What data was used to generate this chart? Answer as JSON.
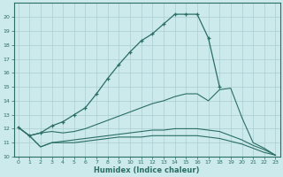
{
  "xlabel": "Humidex (Indice chaleur)",
  "xlim": [
    0,
    23
  ],
  "ylim": [
    10,
    21
  ],
  "yticks": [
    10,
    11,
    12,
    13,
    14,
    15,
    16,
    17,
    18,
    19,
    20
  ],
  "xticks": [
    0,
    1,
    2,
    3,
    4,
    5,
    6,
    7,
    8,
    9,
    10,
    11,
    12,
    13,
    14,
    15,
    16,
    17,
    18,
    19,
    20,
    21,
    22,
    23
  ],
  "bg_color": "#cce9ec",
  "grid_color": "#aacdd2",
  "line_color": "#2a6e65",
  "curve_upper_x": [
    0,
    1,
    2,
    3,
    4,
    5,
    6,
    7,
    8,
    9,
    10,
    11,
    12,
    13,
    14,
    15,
    16,
    17,
    18
  ],
  "curve_upper_y": [
    12.1,
    11.5,
    11.7,
    12.2,
    12.5,
    13.0,
    13.5,
    14.5,
    15.6,
    16.6,
    17.5,
    18.3,
    18.8,
    19.5,
    20.2,
    20.2,
    20.2,
    18.5,
    15.0
  ],
  "curve_mid_x": [
    0,
    1,
    2,
    3,
    4,
    5,
    6,
    7,
    8,
    9,
    10,
    11,
    12,
    13,
    14,
    15,
    16,
    17,
    18,
    19,
    20,
    21,
    22,
    23
  ],
  "curve_mid_y": [
    12.1,
    11.5,
    11.7,
    11.8,
    11.7,
    11.8,
    12.0,
    12.3,
    12.6,
    12.9,
    13.2,
    13.5,
    13.8,
    14.0,
    14.3,
    14.5,
    14.5,
    14.0,
    14.8,
    14.9,
    12.8,
    11.0,
    10.6,
    10.1
  ],
  "curve_low1_x": [
    0,
    1,
    2,
    3,
    4,
    5,
    6,
    7,
    8,
    9,
    10,
    11,
    12,
    13,
    14,
    15,
    16,
    17,
    18,
    19,
    20,
    21,
    22,
    23
  ],
  "curve_low1_y": [
    12.1,
    11.5,
    10.7,
    11.0,
    11.1,
    11.2,
    11.3,
    11.4,
    11.5,
    11.6,
    11.7,
    11.8,
    11.9,
    11.9,
    12.0,
    12.0,
    12.0,
    11.9,
    11.8,
    11.5,
    11.2,
    10.8,
    10.5,
    10.1
  ],
  "curve_low2_x": [
    1,
    2,
    3,
    4,
    5,
    6,
    7,
    8,
    9,
    10,
    11,
    12,
    13,
    14,
    15,
    16,
    17,
    18,
    19,
    20,
    21,
    22,
    23
  ],
  "curve_low2_y": [
    11.5,
    10.7,
    11.0,
    11.0,
    11.0,
    11.1,
    11.2,
    11.3,
    11.4,
    11.4,
    11.4,
    11.5,
    11.5,
    11.5,
    11.5,
    11.5,
    11.4,
    11.3,
    11.1,
    10.9,
    10.6,
    10.3,
    10.1
  ]
}
